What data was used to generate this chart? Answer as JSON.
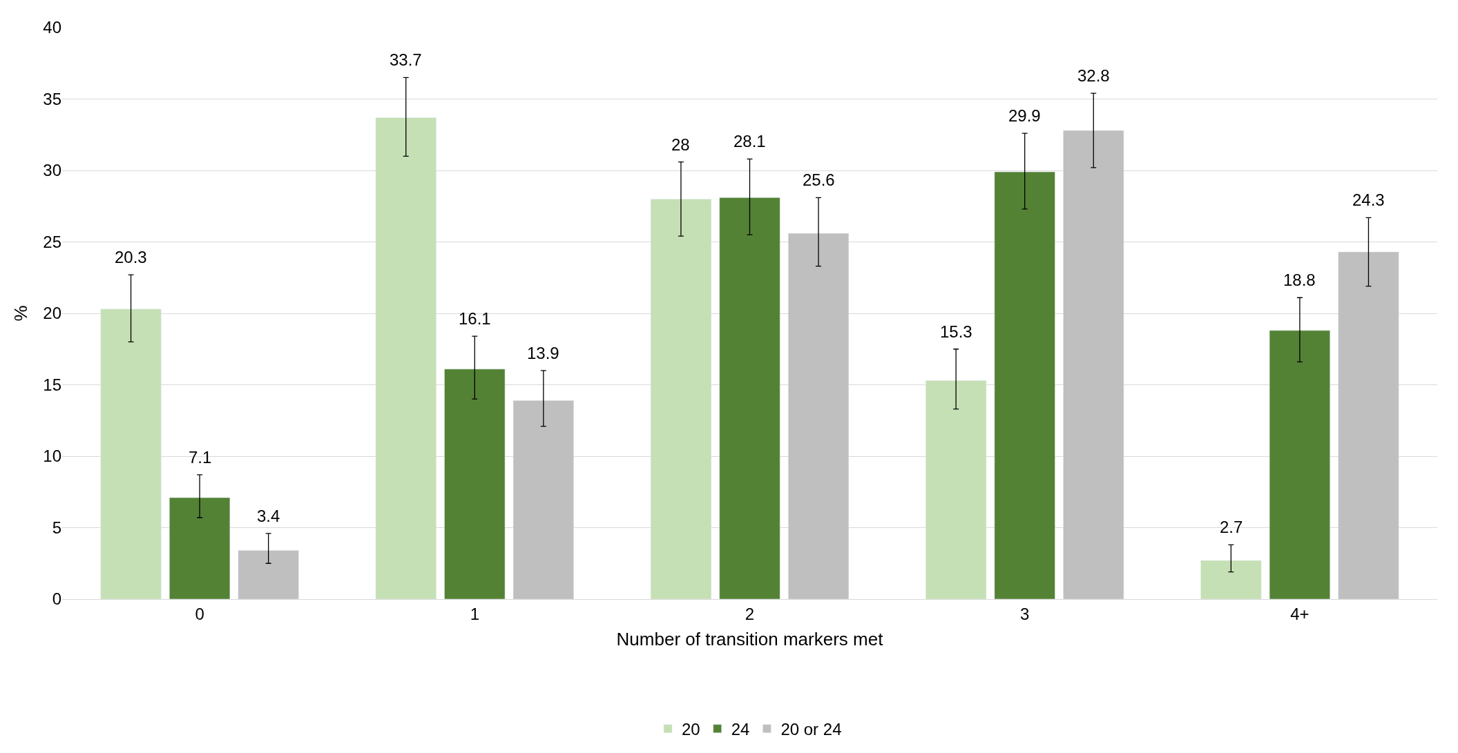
{
  "chart_data": {
    "type": "bar",
    "xlabel": "Number of transition markers met",
    "ylabel": "%",
    "categories": [
      "0",
      "1",
      "2",
      "3",
      "4+"
    ],
    "series": [
      {
        "name": "20",
        "color": "#c5e0b4",
        "values": [
          20.3,
          33.7,
          28,
          15.3,
          2.7
        ],
        "errors": [
          [
            18.0,
            22.7
          ],
          [
            31.0,
            36.5
          ],
          [
            25.4,
            30.6
          ],
          [
            13.3,
            17.5
          ],
          [
            1.9,
            3.8
          ]
        ]
      },
      {
        "name": "24",
        "color": "#548235",
        "values": [
          7.1,
          16.1,
          28.1,
          29.9,
          18.8
        ],
        "errors": [
          [
            5.7,
            8.7
          ],
          [
            14.0,
            18.4
          ],
          [
            25.5,
            30.8
          ],
          [
            27.3,
            32.6
          ],
          [
            16.6,
            21.1
          ]
        ]
      },
      {
        "name": "20 or 24",
        "color": "#bfbfbf",
        "values": [
          3.4,
          13.9,
          25.6,
          32.8,
          24.3
        ],
        "errors": [
          [
            2.5,
            4.6
          ],
          [
            12.1,
            16.0
          ],
          [
            23.3,
            28.1
          ],
          [
            30.2,
            35.4
          ],
          [
            21.9,
            26.7
          ]
        ]
      }
    ],
    "ylim": [
      0,
      40
    ],
    "yticks": [
      0,
      5,
      10,
      15,
      20,
      25,
      30,
      35,
      40
    ],
    "grid": "y",
    "legend": "bottom",
    "data_labels": true
  }
}
